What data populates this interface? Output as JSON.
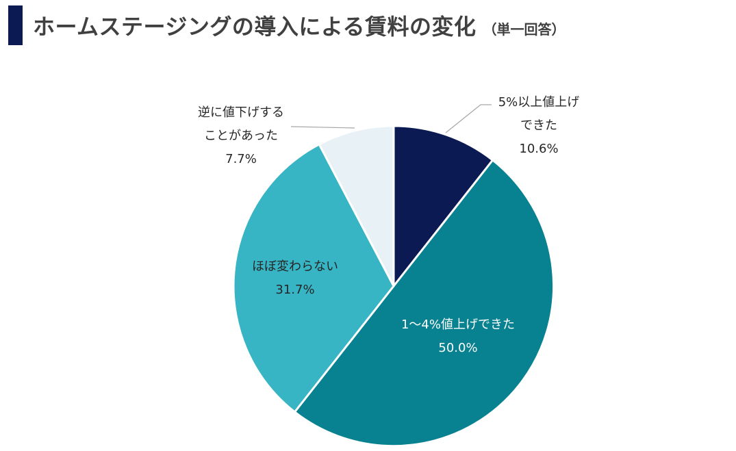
{
  "header": {
    "title": "ホームステージングの導入による賃料の変化",
    "subtitle": "（単一回答）"
  },
  "chart_data": {
    "type": "pie",
    "title": "ホームステージングの導入による賃料の変化",
    "subtitle": "（単一回答）",
    "slices": [
      {
        "name_lines": [
          "5%以上値上げ",
          "できた"
        ],
        "value_label": "10.6%",
        "value": 10.6,
        "color": "#0b1a52",
        "label_color": "dark"
      },
      {
        "name_lines": [
          "1〜4%値上げできた"
        ],
        "value_label": "50.0%",
        "value": 50.0,
        "color": "#088290",
        "label_color": "white"
      },
      {
        "name_lines": [
          "ほぼ変わらない"
        ],
        "value_label": "31.7%",
        "value": 31.7,
        "color": "#37b5c4",
        "label_color": "dark"
      },
      {
        "name_lines": [
          "逆に値下げする",
          "ことがあった"
        ],
        "value_label": "7.7%",
        "value": 7.7,
        "color": "#e8f2f6",
        "label_color": "dark"
      }
    ],
    "start": "12 o'clock",
    "direction": "clockwise",
    "legend": "none"
  }
}
